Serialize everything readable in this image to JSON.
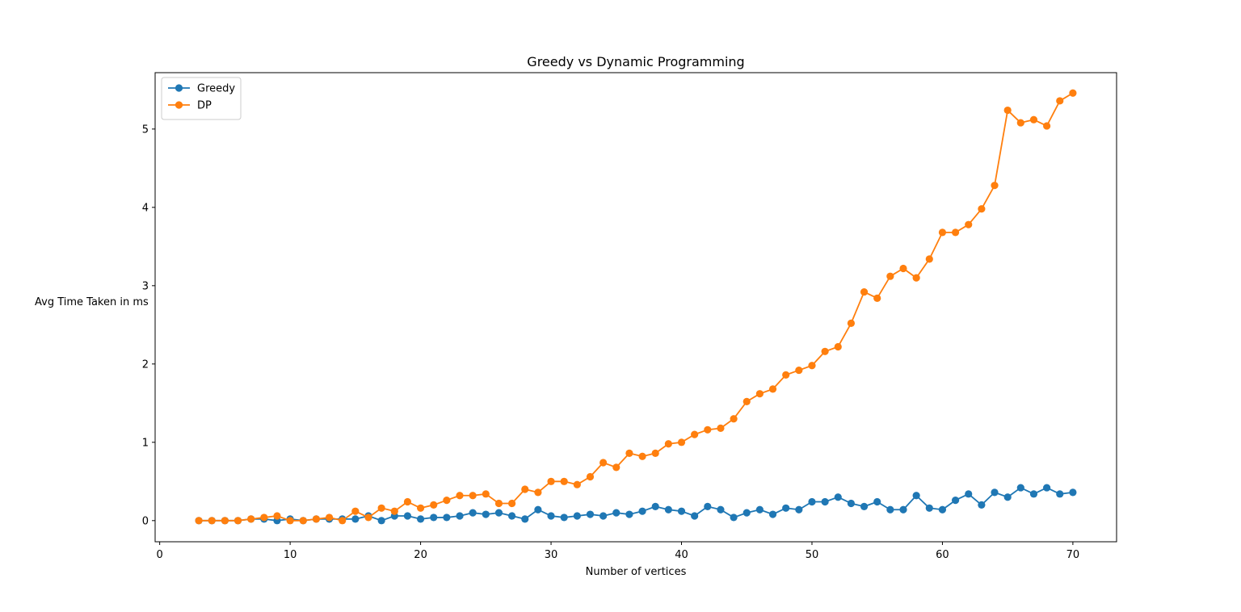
{
  "chart_data": {
    "type": "line",
    "title": "Greedy vs Dynamic Programming",
    "xlabel": "Number of vertices",
    "ylabel": "Avg Time Taken in ms",
    "xlim": [
      -0.35,
      73.35
    ],
    "ylim": [
      -0.27,
      5.72
    ],
    "xticks": [
      0,
      10,
      20,
      30,
      40,
      50,
      60,
      70
    ],
    "yticks": [
      0,
      1,
      2,
      3,
      4,
      5
    ],
    "grid": false,
    "legend_position": "upper-left",
    "x": [
      3,
      4,
      5,
      6,
      7,
      8,
      9,
      10,
      11,
      12,
      13,
      14,
      15,
      16,
      17,
      18,
      19,
      20,
      21,
      22,
      23,
      24,
      25,
      26,
      27,
      28,
      29,
      30,
      31,
      32,
      33,
      34,
      35,
      36,
      37,
      38,
      39,
      40,
      41,
      42,
      43,
      44,
      45,
      46,
      47,
      48,
      49,
      50,
      51,
      52,
      53,
      54,
      55,
      56,
      57,
      58,
      59,
      60,
      61,
      62,
      63,
      64,
      65,
      66,
      67,
      68,
      69,
      70
    ],
    "series": [
      {
        "name": "Greedy",
        "color": "#1f77b4",
        "marker": "circle",
        "values": [
          0.0,
          0.0,
          0.0,
          0.0,
          0.02,
          0.02,
          0.0,
          0.02,
          0.0,
          0.02,
          0.02,
          0.02,
          0.02,
          0.06,
          0.0,
          0.06,
          0.06,
          0.02,
          0.04,
          0.04,
          0.06,
          0.1,
          0.08,
          0.1,
          0.06,
          0.02,
          0.14,
          0.06,
          0.04,
          0.06,
          0.08,
          0.06,
          0.1,
          0.08,
          0.12,
          0.18,
          0.14,
          0.12,
          0.06,
          0.18,
          0.14,
          0.04,
          0.1,
          0.14,
          0.08,
          0.16,
          0.14,
          0.24,
          0.24,
          0.3,
          0.22,
          0.18,
          0.24,
          0.14,
          0.14,
          0.32,
          0.16,
          0.14,
          0.26,
          0.34,
          0.2,
          0.36,
          0.3,
          0.42,
          0.34,
          0.42,
          0.34,
          0.36
        ]
      },
      {
        "name": "DP",
        "color": "#ff7f0e",
        "marker": "circle",
        "values": [
          0.0,
          0.0,
          0.0,
          0.0,
          0.02,
          0.04,
          0.06,
          0.0,
          0.0,
          0.02,
          0.04,
          0.0,
          0.12,
          0.04,
          0.16,
          0.12,
          0.24,
          0.16,
          0.2,
          0.26,
          0.32,
          0.32,
          0.34,
          0.22,
          0.22,
          0.4,
          0.36,
          0.5,
          0.5,
          0.46,
          0.56,
          0.74,
          0.68,
          0.86,
          0.82,
          0.86,
          0.98,
          1.0,
          1.1,
          1.16,
          1.18,
          1.3,
          1.52,
          1.62,
          1.68,
          1.86,
          1.92,
          1.98,
          2.16,
          2.22,
          2.52,
          2.92,
          2.84,
          3.12,
          3.22,
          3.1,
          3.34,
          3.68,
          3.68,
          3.78,
          3.98,
          4.28,
          5.24,
          5.08,
          5.12,
          5.04,
          5.36,
          5.46
        ]
      }
    ]
  }
}
